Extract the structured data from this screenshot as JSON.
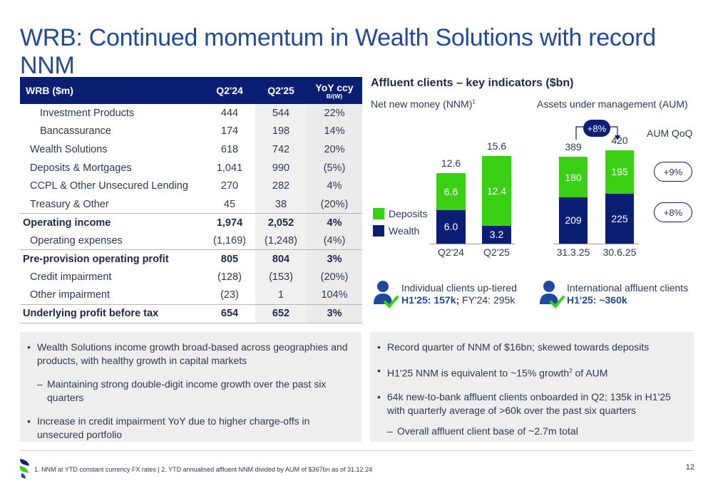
{
  "title": "WRB: Continued momentum in Wealth Solutions with record NNM",
  "table": {
    "header": {
      "label": "WRB ($m)",
      "q224": "Q2'24",
      "q225": "Q2'25",
      "yoy": "YoY ccy",
      "yoy_sub": "B/(W)"
    },
    "rows": [
      {
        "label": "Investment Products",
        "q224": "444",
        "q225": "544",
        "yoy": "22%"
      },
      {
        "label": "Bancassurance",
        "q224": "174",
        "q225": "198",
        "yoy": "14%"
      },
      {
        "label": "Wealth Solutions",
        "q224": "618",
        "q225": "742",
        "yoy": "20%"
      },
      {
        "label": "Deposits & Mortgages",
        "q224": "1,041",
        "q225": "990",
        "yoy": "(5%)"
      },
      {
        "label": "CCPL & Other Unsecured Lending",
        "q224": "270",
        "q225": "282",
        "yoy": "4%"
      },
      {
        "label": "Treasury & Other",
        "q224": "45",
        "q225": "38",
        "yoy": "(20%)"
      },
      {
        "label": "Operating income",
        "q224": "1,974",
        "q225": "2,052",
        "yoy": "4%"
      },
      {
        "label": "Operating expenses",
        "q224": "(1,169)",
        "q225": "(1,248)",
        "yoy": "(4%)"
      },
      {
        "label": "Pre-provision operating profit",
        "q224": "805",
        "q225": "804",
        "yoy": "3%"
      },
      {
        "label": "Credit impairment",
        "q224": "(128)",
        "q225": "(153)",
        "yoy": "(20%)"
      },
      {
        "label": "Other impairment",
        "q224": "(23)",
        "q225": "1",
        "yoy": "104%"
      },
      {
        "label": "Underlying profit before tax",
        "q224": "654",
        "q225": "652",
        "yoy": "3%"
      }
    ]
  },
  "affluent": {
    "heading": "Affluent clients – key indicators ($bn)",
    "nnm_title": "Net new money (NNM)",
    "nnm_sup": "1",
    "aum_title": "Assets under management (AUM)",
    "legend_deposits": "Deposits",
    "legend_wealth": "Wealth",
    "aum_qoq_label": "AUM QoQ",
    "aum_growth_total": "+8%",
    "aum_growth_deposits": "+9%",
    "aum_growth_wealth": "+8%"
  },
  "chart_data": [
    {
      "type": "bar",
      "title": "Net new money (NNM)",
      "categories": [
        "Q2'24",
        "Q2'25"
      ],
      "series": [
        {
          "name": "Wealth",
          "values": [
            6.0,
            3.2
          ]
        },
        {
          "name": "Deposits",
          "values": [
            6.6,
            12.4
          ]
        }
      ],
      "totals": [
        12.6,
        15.6
      ],
      "labels": {
        "wealth": [
          "6.0",
          "3.2"
        ],
        "deposits": [
          "6.6",
          "12.4"
        ],
        "totals": [
          "12.6",
          "15.6"
        ]
      }
    },
    {
      "type": "bar",
      "title": "Assets under management (AUM)",
      "categories": [
        "31.3.25",
        "30.6.25"
      ],
      "series": [
        {
          "name": "Wealth",
          "values": [
            209,
            225
          ]
        },
        {
          "name": "Deposits",
          "values": [
            180,
            195
          ]
        }
      ],
      "totals": [
        389,
        420
      ],
      "labels": {
        "wealth": [
          "209",
          "225"
        ],
        "deposits": [
          "180",
          "195"
        ],
        "totals": [
          "389",
          "420"
        ]
      }
    }
  ],
  "clients": {
    "uptiered_title": "Individual clients up-tiered",
    "uptiered_value_bold": "H1'25: 157k;",
    "uptiered_value_rest": " FY'24: 295k",
    "intl_title": "International affluent clients",
    "intl_value_bold": "H1'25: ~360k"
  },
  "left_box": {
    "b1": "Wealth Solutions income growth broad-based across geographies and products, with healthy growth in capital markets",
    "b1a": "Maintaining strong double-digit income growth over the past six quarters",
    "b2": "Increase in credit impairment YoY due to higher charge-offs in unsecured portfolio"
  },
  "right_box": {
    "b1": "Record quarter of NNM of $16bn; skewed towards deposits",
    "b2_pre": "H1'25 NNM is equivalent to ~15% growth",
    "b2_sup": "2",
    "b2_post": " of AUM",
    "b3": "64k new-to-bank affluent clients onboarded in Q2; 135k in H1'25 with quarterly average of >60k over the past six quarters",
    "b3a": "Overall affluent client base of ~2.7m total"
  },
  "footnote": "1. NNM at YTD constant currency FX rates | 2. YTD annualised affluent NNM divided by AUM of $367bn as of 31.12.24",
  "page_number": "12",
  "colors": {
    "navy": "#0a1f73",
    "green": "#3ad114",
    "title_blue": "#1f4a9c"
  }
}
